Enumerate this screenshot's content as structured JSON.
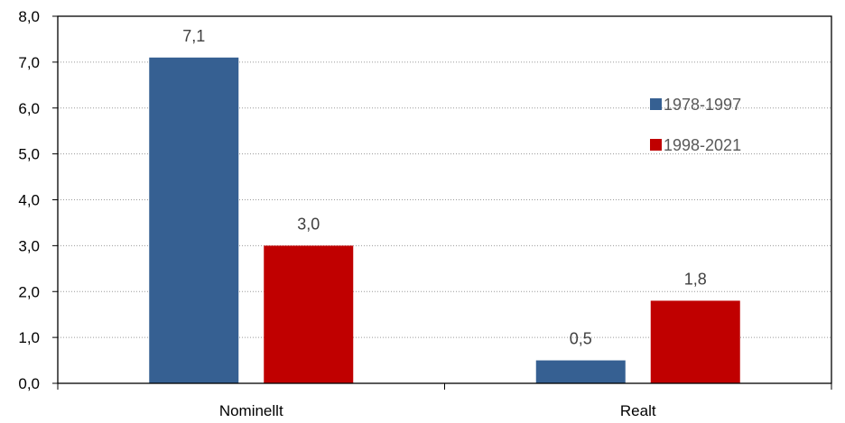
{
  "chart_data": {
    "type": "bar",
    "title": "",
    "xlabel": "",
    "ylabel": "",
    "categories": [
      "Nominellt",
      "Realt"
    ],
    "series": [
      {
        "name": "1978-1997",
        "values": [
          7.1,
          0.5
        ],
        "labels": [
          "7,1",
          "0,5"
        ],
        "color": "#366092"
      },
      {
        "name": "1998-2021",
        "values": [
          3.0,
          1.8
        ],
        "labels": [
          "3,0",
          "1,8"
        ],
        "color": "#C00000"
      }
    ],
    "ylim": [
      0,
      8
    ],
    "yticks": [
      0,
      1,
      2,
      3,
      4,
      5,
      6,
      7,
      8
    ],
    "ytick_labels": [
      "0,0",
      "1,0",
      "2,0",
      "3,0",
      "4,0",
      "5,0",
      "6,0",
      "7,0",
      "8,0"
    ],
    "grid": true,
    "legend_position": "right"
  }
}
